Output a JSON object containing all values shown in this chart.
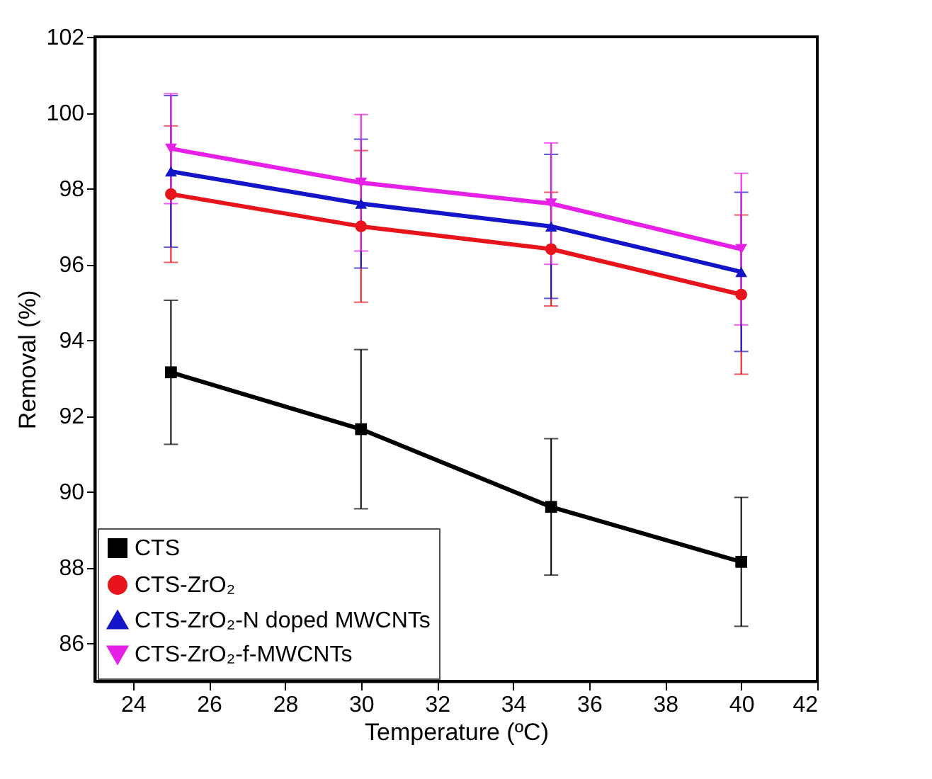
{
  "chart_data": {
    "type": "line",
    "xlabel": "Temperature (ºC)",
    "ylabel": "Removal (%)",
    "x": [
      25,
      30,
      35,
      40
    ],
    "xlim": [
      23,
      42
    ],
    "xticks": [
      24,
      26,
      28,
      30,
      32,
      34,
      36,
      38,
      40,
      42
    ],
    "ylim": [
      85,
      102
    ],
    "yticks": [
      86,
      88,
      90,
      92,
      94,
      96,
      98,
      100,
      102
    ],
    "grid": false,
    "legend": "bottom left",
    "line_style": "solid",
    "series": [
      {
        "name": "CTS",
        "color": "#000000",
        "marker": "square",
        "values": [
          93.15,
          91.65,
          89.6,
          88.15
        ],
        "errors": [
          1.9,
          2.1,
          1.8,
          1.7
        ]
      },
      {
        "name": "CTS-ZrO₂",
        "color": "#e8141c",
        "marker": "circle",
        "values": [
          97.85,
          97.0,
          96.4,
          95.2
        ],
        "errors": [
          1.8,
          2.0,
          1.5,
          2.1
        ]
      },
      {
        "name": "CTS-ZrO₂-N doped MWCNTs",
        "color": "#1414c8",
        "marker": "triangle",
        "values": [
          98.45,
          97.6,
          97.0,
          95.8
        ],
        "errors": [
          2.0,
          1.7,
          1.9,
          2.1
        ]
      },
      {
        "name": "CTS-ZrO₂-f-MWCNTs",
        "color": "#e620e6",
        "marker": "triangle-down",
        "values": [
          99.05,
          98.15,
          97.6,
          96.4
        ],
        "errors": [
          1.45,
          1.8,
          1.6,
          2.0
        ]
      }
    ]
  }
}
